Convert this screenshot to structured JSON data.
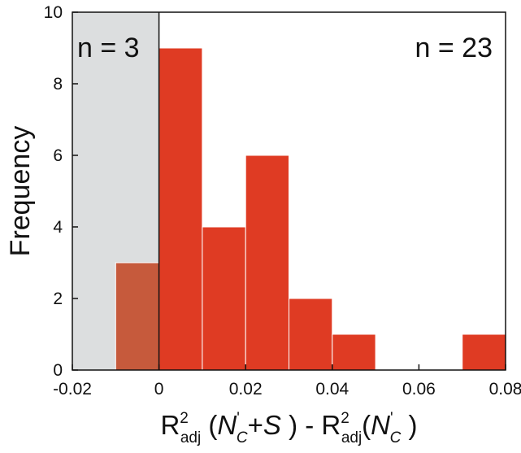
{
  "chart_data": {
    "type": "bar",
    "title": "",
    "ylabel": "Frequency",
    "xlabel": {
      "r": "R",
      "sup2": "2",
      "adj": "adj",
      "open_a": " (",
      "n1": "N",
      "prime1": "'",
      "c1": "C",
      "plus_s": "+",
      "s": "S",
      "close_a": " )  - ",
      "r2": "R",
      "sup2b": "2",
      "adj2": "adj",
      "open_b": "(",
      "n2": "N",
      "prime2": "'",
      "c2": "C",
      "close_b": " )"
    },
    "xlim": [
      -0.02,
      0.08
    ],
    "ylim": [
      0,
      10
    ],
    "xticks": [
      -0.02,
      0,
      0.02,
      0.04,
      0.06,
      0.08
    ],
    "xtick_labels": [
      "-0.02",
      "0",
      "0.02",
      "0.04",
      "0.06",
      "0.08"
    ],
    "yticks": [
      0,
      2,
      4,
      6,
      8,
      10
    ],
    "ytick_labels": [
      "0",
      "2",
      "4",
      "6",
      "8",
      "10"
    ],
    "shaded_region": [
      -0.02,
      0
    ],
    "bins": [
      {
        "x0": -0.01,
        "x1": 0.0,
        "count": 3,
        "negative": true
      },
      {
        "x0": 0.0,
        "x1": 0.01,
        "count": 9,
        "negative": false
      },
      {
        "x0": 0.01,
        "x1": 0.02,
        "count": 4,
        "negative": false
      },
      {
        "x0": 0.02,
        "x1": 0.03,
        "count": 6,
        "negative": false
      },
      {
        "x0": 0.03,
        "x1": 0.04,
        "count": 2,
        "negative": false
      },
      {
        "x0": 0.04,
        "x1": 0.05,
        "count": 1,
        "negative": false
      },
      {
        "x0": 0.05,
        "x1": 0.06,
        "count": 0,
        "negative": false
      },
      {
        "x0": 0.06,
        "x1": 0.07,
        "count": 0,
        "negative": false
      },
      {
        "x0": 0.07,
        "x1": 0.08,
        "count": 1,
        "negative": false
      }
    ],
    "annotations": {
      "left": "n = 3",
      "right": "n = 23"
    },
    "colors": {
      "positive_bar": "#df3b23",
      "negative_bar": "#c65a3c",
      "shade": "#dcdedf",
      "zero_line": "#111111"
    }
  }
}
